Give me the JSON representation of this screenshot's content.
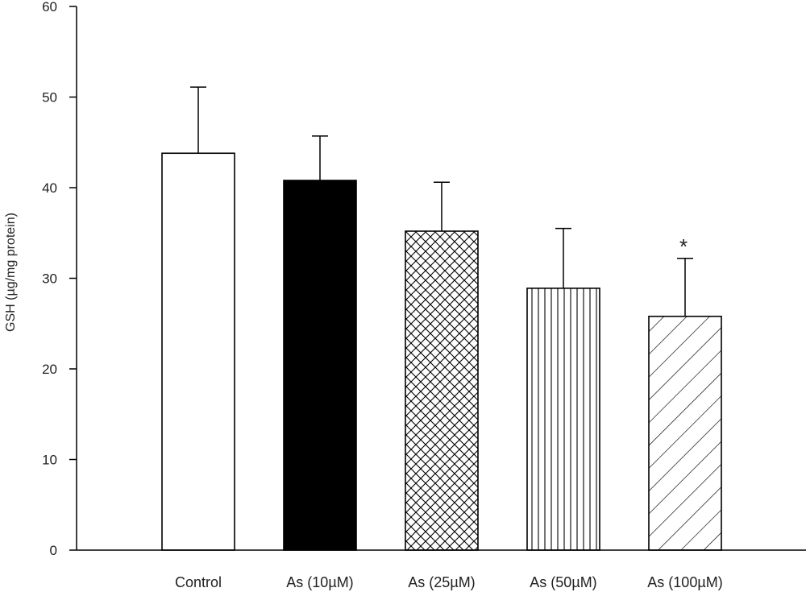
{
  "chart_data": {
    "type": "bar",
    "title": "",
    "xlabel": "",
    "ylabel": "GSH (µg/mg protein)",
    "ylim": [
      0,
      60
    ],
    "yticks": [
      0,
      10,
      20,
      30,
      40,
      50,
      60
    ],
    "grid": false,
    "legend": "none",
    "categories": [
      "Control",
      "As (10µM)",
      "As (25µM)",
      "As (50µM)",
      "As (100µM)"
    ],
    "values": [
      43.8,
      40.8,
      35.2,
      28.9,
      25.8
    ],
    "errors": [
      7.3,
      4.9,
      5.4,
      6.6,
      6.4
    ],
    "fills": [
      "white",
      "solid-black",
      "crosshatch",
      "vertical-lines",
      "diagonal-lines"
    ],
    "annotations": [
      "",
      "",
      "",
      "",
      "*"
    ]
  }
}
